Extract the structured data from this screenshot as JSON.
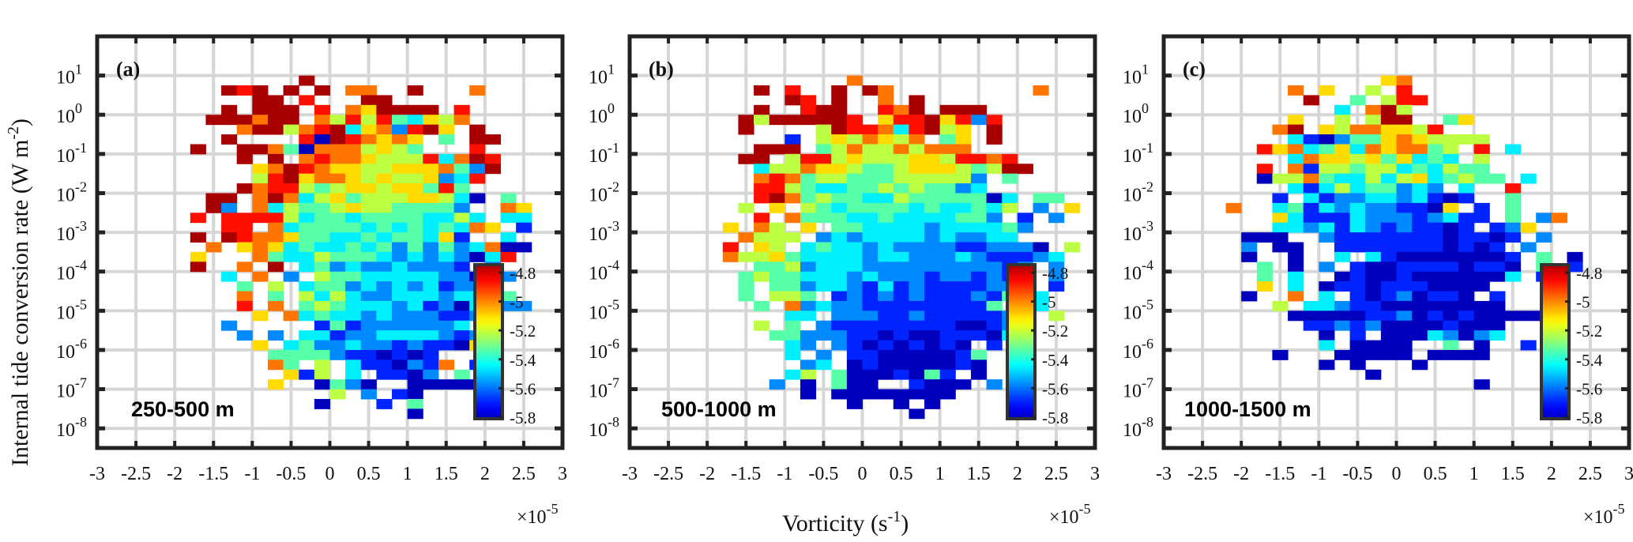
{
  "chart_data": [
    {
      "type": "heatmap",
      "panel": "(a)",
      "annotation": "250-500 m",
      "xlabel": "",
      "x_multiplier": "×10-5",
      "xlim": [
        -3,
        3
      ],
      "xticks": [
        "-3",
        "-2.5",
        "-2",
        "-1.5",
        "-1",
        "-0.5",
        "0",
        "0.5",
        "1",
        "1.5",
        "2",
        "2.5",
        "3"
      ],
      "ylabel": "Internal tide conversion rate (W m-2)",
      "ylim_log10": [
        -8.5,
        2
      ],
      "yticks": [
        "10^1",
        "10^0",
        "10^-1",
        "10^-2",
        "10^-3",
        "10^-4",
        "10^-5",
        "10^-6",
        "10^-7",
        "10^-8"
      ],
      "x_bin": 0.2,
      "y_bin_log10": 0.25,
      "grid_top_log10": 1.0,
      "colorbar": {
        "min": -5.8,
        "max": -4.8,
        "ticks": [
          "-4.8",
          "-5",
          "-5.2",
          "-5.4",
          "-5.6",
          "-5.8"
        ],
        "colormap": "jet",
        "placement": "inside-lower-right"
      },
      "levels_note": "cell code 0..9 maps linearly to colorbar -5.8..-4.8; '.' = no data",
      "rows": [
        ".............9................",
        "........989.9.9.77..9...7.....",
        "..........99.8...99...........",
        "........9.999.8.769999.8......",
        ".......999799.7585843657......",
        ".........79957893672896.9.....",
        "........9....80987676.4.99....",
        "......9..997407775654...8.....",
        ".........9.9.7877655583798....",
        "..........6798766556667429....",
        "..........589677656556238.....",
        ".........978854566566484.......",
        ".......99.797356455566530.4...",
        ".......92.73544565544442..76..",
        "......8.88885344344443353.33..",
        "........88.734444343434376.1..",
        "......9.9877644334344361..3...",
        ".......7.6763433434242423700..",
        "......6...74335444323232038...",
        "......9..7.9.34232232221.2....",
        "........3.7.2.5443333322092...",
        ".........4.5.3442323231226.....",
        ".........7.4.535322333233.4...",
        ".........8.7.454333231203322..",
        "..........6.73433232221123....",
        "........2.....1412222223......",
        ".........2.2.331223333212.....",
        "..........6.3422322121106.....",
        "...........44442110101........",
        "...........74.5.3110217.1.....",
        "............615.3.1102.4.0....",
        "...........6..0420..00000.....",
        "...............5.2.10....0....",
        "..............0...1.4.........",
        "....................0........."
      ]
    },
    {
      "type": "heatmap",
      "panel": "(b)",
      "annotation": "500-1000 m",
      "xlabel": "Vorticity (s-1)",
      "x_multiplier": "×10-5",
      "xlim": [
        -3,
        3
      ],
      "xticks": [
        "-3",
        "-2.5",
        "-2",
        "-1.5",
        "-1",
        "-0.5",
        "0",
        "0.5",
        "1",
        "1.5",
        "2",
        "2.5",
        "3"
      ],
      "ylabel": "",
      "ylim_log10": [
        -8.5,
        2
      ],
      "yticks": [
        "10^1",
        "10^0",
        "10^-1",
        "10^-2",
        "10^-3",
        "10^-4",
        "10^-5",
        "10^-6",
        "10^-7",
        "10^-8"
      ],
      "x_bin": 0.2,
      "y_bin_log10": 0.25,
      "grid_top_log10": 1.0,
      "colorbar": {
        "min": -5.8,
        "max": -4.8,
        "ticks": [
          "-4.8",
          "-5",
          "-5.2",
          "-5.4",
          "-5.6",
          "-5.8"
        ],
        "colormap": "jet",
        "placement": "inside-lower-right"
      },
      "levels_note": "cell code 0..9 maps linearly to colorbar -5.8..-4.8; '.' = no data",
      "rows": [
        "..............7...............",
        "........9.8..9.97.........7...",
        "..........98.9..7.9...........",
        "........9..899..879.999.......",
        ".......95999998.68896828......",
        ".......9....5988738956.9......",
        "..........1.5657657.46.9......",
        "........999.4575575777........",
        ".......99.588565556658878.....",
        "........355766544566654599....",
        "........787455444555552.4.....",
        "........885433445454423.......",
        "........89745443354444403.44..",
        ".......5.6.54344443433435.2.6.",
        "........8.74443343333442.1.2..",
        "......6.75.6.4433332333342...",
        ".......7555.2323333232233...",
        "......8.65.3433232222112220.5.",
        "......7556433332332223211123..",
        "........445233322222222212.2..",
        ".......4544333232221221213.2..",
        ".......4.44233213121111222.1..",
        ".......4.554.121212111214.3...",
        "........4.72322111111114.33...",
        "..........33.2221121111121.5..",
        "........5.4.21111111100121....",
        ".........4422211010011103.....",
        "..........32.210101010.1......",
        "..........3.2.110000014.......",
        "...........23.010000010.......",
        "..........35.40001041.0.......",
        ".........2.0.400..1000.2......",
        "...........0.00000000.........",
        "..............0..0.0..........",
        "..................0..........."
      ]
    },
    {
      "type": "heatmap",
      "panel": "(c)",
      "annotation": "1000-1500 m",
      "xlabel": "",
      "x_multiplier": "×10-5",
      "xlim": [
        -3,
        3
      ],
      "xticks": [
        "-3",
        "-2.5",
        "-2",
        "-1.5",
        "-1",
        "-0.5",
        "0",
        "0.5",
        "1",
        "1.5",
        "2",
        "2.5",
        "3"
      ],
      "ylabel": "",
      "ylim_log10": [
        -8.5,
        2
      ],
      "yticks": [
        "10^1",
        "10^0",
        "10^-1",
        "10^-2",
        "10^-3",
        "10^-4",
        "10^-5",
        "10^-6",
        "10^-7",
        "10^-8"
      ],
      "x_bin": 0.2,
      "y_bin_log10": 0.25,
      "grid_top_log10": 1.0,
      "colorbar": {
        "min": -5.8,
        "max": -4.8,
        "ticks": [
          "-4.8",
          "-5",
          "-5.2",
          "-5.4",
          "-5.6",
          "-5.8"
        ],
        "colormap": "jet",
        "placement": "inside-lower-right"
      },
      "levels_note": "cell code 0..9 maps linearly to colorbar -5.8..-4.8; '.' = no data",
      "rows": [
        "..............67..............",
        "........7.6..5.8..............",
        ".........9..4.588.............",
        "...........3.795..............",
        "........6..5.599..46..........",
        ".......79.65776658............",
        "........3102446765555.........",
        "......8673463767745.8.3.......",
        "........37665646343.5.........",
        "......8.7155455343544.........",
        "......0557433535634544.3......",
        "........3135344232.3..8.......",
        ".......1.31223323101..4.......",
        "....7..341323221106.1.4.......",
        ".......63111322212311.4.27....",
        ".......3323132121101.126......",
        ".....000..2111111101101.2.....",
        ".....2.00..11111110101.2.......",
        ".....0..0..3.3100000001.4.0....",
        "......4.0.2.10011110110.4.1...",
        "......4.3..010010000003.1.....",
        "......6.3.01101110000.........",
        ".....0..7.3.10120110.1........",
        ".......5.3321100000000........",
        "........00000112010100000.....",
        ".........1121200001000........",
        "..........0.1.00032023........",
        "..........3.0000..4.0..1......",
        ".......0...00000.0000.........",
        "..........0.0...0.............",
        ".............0................",
        "....................0.........."
      ]
    }
  ],
  "figure": {
    "ylabel": "Internal tide conversion rate (W m-2)",
    "ylabel_main": "Internal tide conversion rate (W m",
    "ylabel_sup": "-2",
    "ylabel_end": ")",
    "xlabel_main": "Vorticity (s",
    "xlabel_sup": "-1",
    "xlabel_end": ")",
    "x_mult_base": "×10",
    "x_mult_sup": "-5",
    "panel_labels": [
      "(a)",
      "(b)",
      "(c)"
    ],
    "depth_labels": [
      "250-500 m",
      "500-1000 m",
      "1000-1500 m"
    ],
    "colors": {
      "axis": "#222222",
      "grid": "#d6d6d6"
    }
  }
}
